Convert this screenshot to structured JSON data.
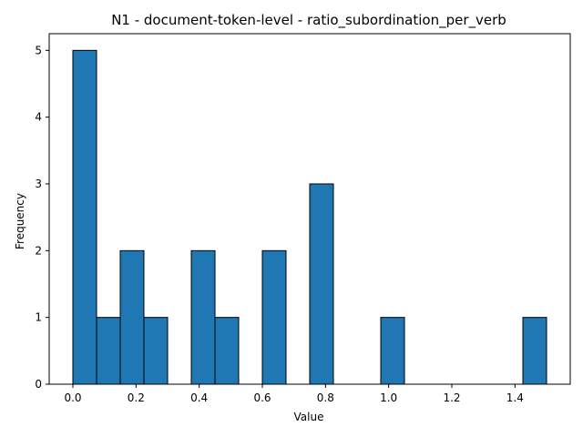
{
  "chart_data": {
    "type": "bar",
    "title": "N1 - document-token-level - ratio_subordination_per_verb",
    "xlabel": "Value",
    "ylabel": "Frequency",
    "bins": [
      {
        "start": 0.0,
        "end": 0.075,
        "count": 5
      },
      {
        "start": 0.075,
        "end": 0.15,
        "count": 1
      },
      {
        "start": 0.15,
        "end": 0.225,
        "count": 2
      },
      {
        "start": 0.225,
        "end": 0.3,
        "count": 1
      },
      {
        "start": 0.3,
        "end": 0.375,
        "count": 0
      },
      {
        "start": 0.375,
        "end": 0.45,
        "count": 2
      },
      {
        "start": 0.45,
        "end": 0.525,
        "count": 1
      },
      {
        "start": 0.525,
        "end": 0.6,
        "count": 0
      },
      {
        "start": 0.6,
        "end": 0.675,
        "count": 2
      },
      {
        "start": 0.675,
        "end": 0.75,
        "count": 0
      },
      {
        "start": 0.75,
        "end": 0.825,
        "count": 3
      },
      {
        "start": 0.825,
        "end": 0.9,
        "count": 0
      },
      {
        "start": 0.9,
        "end": 0.975,
        "count": 0
      },
      {
        "start": 0.975,
        "end": 1.05,
        "count": 1
      },
      {
        "start": 1.05,
        "end": 1.125,
        "count": 0
      },
      {
        "start": 1.125,
        "end": 1.2,
        "count": 0
      },
      {
        "start": 1.2,
        "end": 1.275,
        "count": 0
      },
      {
        "start": 1.275,
        "end": 1.35,
        "count": 0
      },
      {
        "start": 1.35,
        "end": 1.425,
        "count": 0
      },
      {
        "start": 1.425,
        "end": 1.5,
        "count": 1
      }
    ],
    "xlim": [
      -0.075,
      1.575
    ],
    "ylim": [
      0,
      5.25
    ],
    "xticks": [
      0.0,
      0.2,
      0.4,
      0.6,
      0.8,
      1.0,
      1.2,
      1.4
    ],
    "xtick_labels": [
      "0.0",
      "0.2",
      "0.4",
      "0.6",
      "0.8",
      "1.0",
      "1.2",
      "1.4"
    ],
    "yticks": [
      0,
      1,
      2,
      3,
      4,
      5
    ],
    "ytick_labels": [
      "0",
      "1",
      "2",
      "3",
      "4",
      "5"
    ],
    "bar_color": "#1f77b4",
    "bar_edge_color": "#000000",
    "grid": false,
    "legend": false
  }
}
